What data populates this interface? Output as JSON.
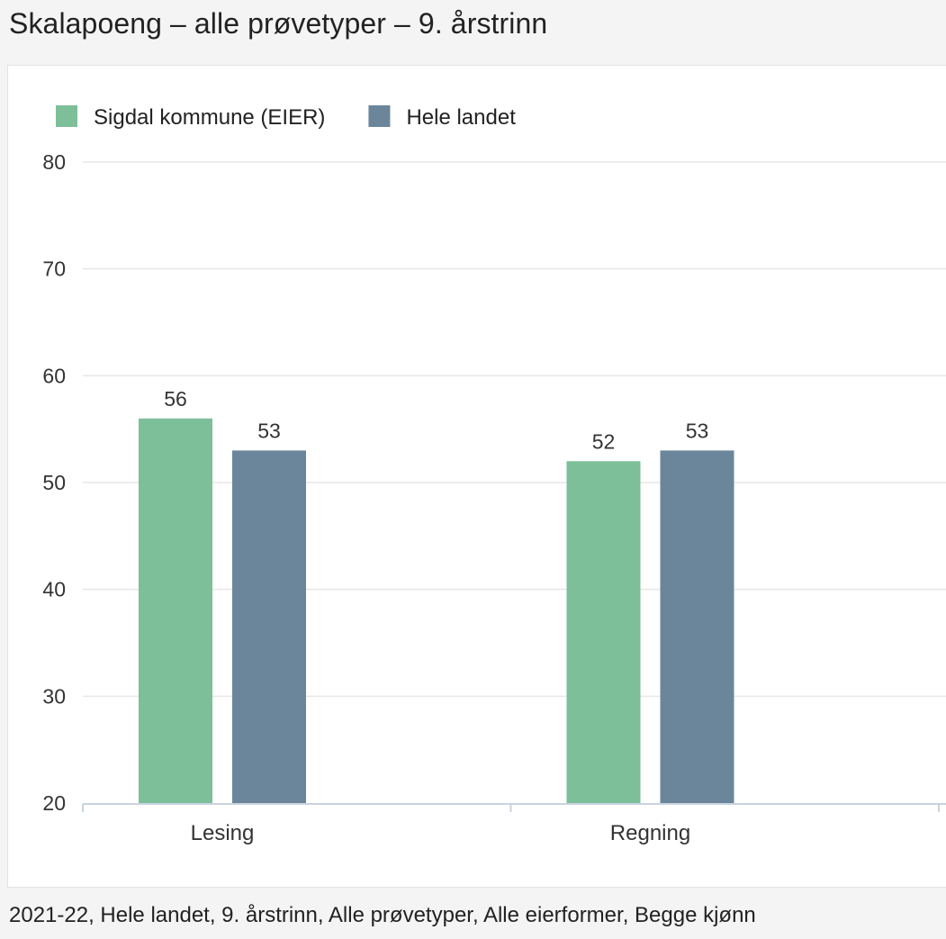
{
  "title": "Skalapoeng – alle prøvetyper – 9. årstrinn",
  "footer": "2021-22, Hele landet, 9. årstrinn, Alle prøvetyper, Alle eierformer, Begge kjønn",
  "chart_data": {
    "type": "bar",
    "title": "Skalapoeng – alle prøvetyper – 9. årstrinn",
    "categories": [
      "Lesing",
      "Regning"
    ],
    "series": [
      {
        "name": "Sigdal kommune (EIER)",
        "values": [
          56,
          52
        ],
        "color": "#7dbf98"
      },
      {
        "name": "Hele landet",
        "values": [
          53,
          53
        ],
        "color": "#6b869b"
      }
    ],
    "yticks": [
      20,
      30,
      40,
      50,
      60,
      70,
      80
    ],
    "ylim": [
      20,
      80
    ],
    "grid": true,
    "legend": "top-left",
    "xlabel": "",
    "ylabel": ""
  }
}
